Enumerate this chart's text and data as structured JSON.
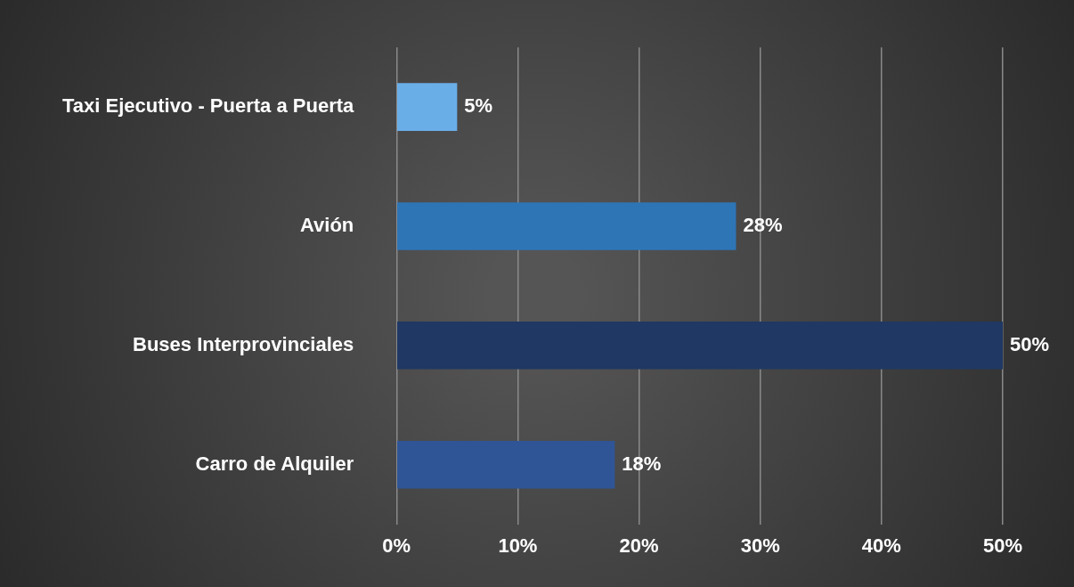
{
  "chart_data": {
    "type": "bar",
    "orientation": "horizontal",
    "categories": [
      "Taxi Ejecutivo - Puerta a Puerta",
      "Avión",
      "Buses Interprovinciales",
      "Carro de Alquiler"
    ],
    "values": [
      5,
      28,
      50,
      18
    ],
    "colors": [
      "#6aaee8",
      "#2e75b6",
      "#1f3864",
      "#2f5597"
    ],
    "value_labels": [
      "5%",
      "28%",
      "50%",
      "18%"
    ],
    "xlim": [
      0,
      50
    ],
    "xticks": [
      {
        "value": 0,
        "label": "0%"
      },
      {
        "value": 10,
        "label": "10%"
      },
      {
        "value": 20,
        "label": "20%"
      },
      {
        "value": 30,
        "label": "30%"
      },
      {
        "value": 40,
        "label": "40%"
      },
      {
        "value": 50,
        "label": "50%"
      }
    ],
    "grid": "x"
  }
}
